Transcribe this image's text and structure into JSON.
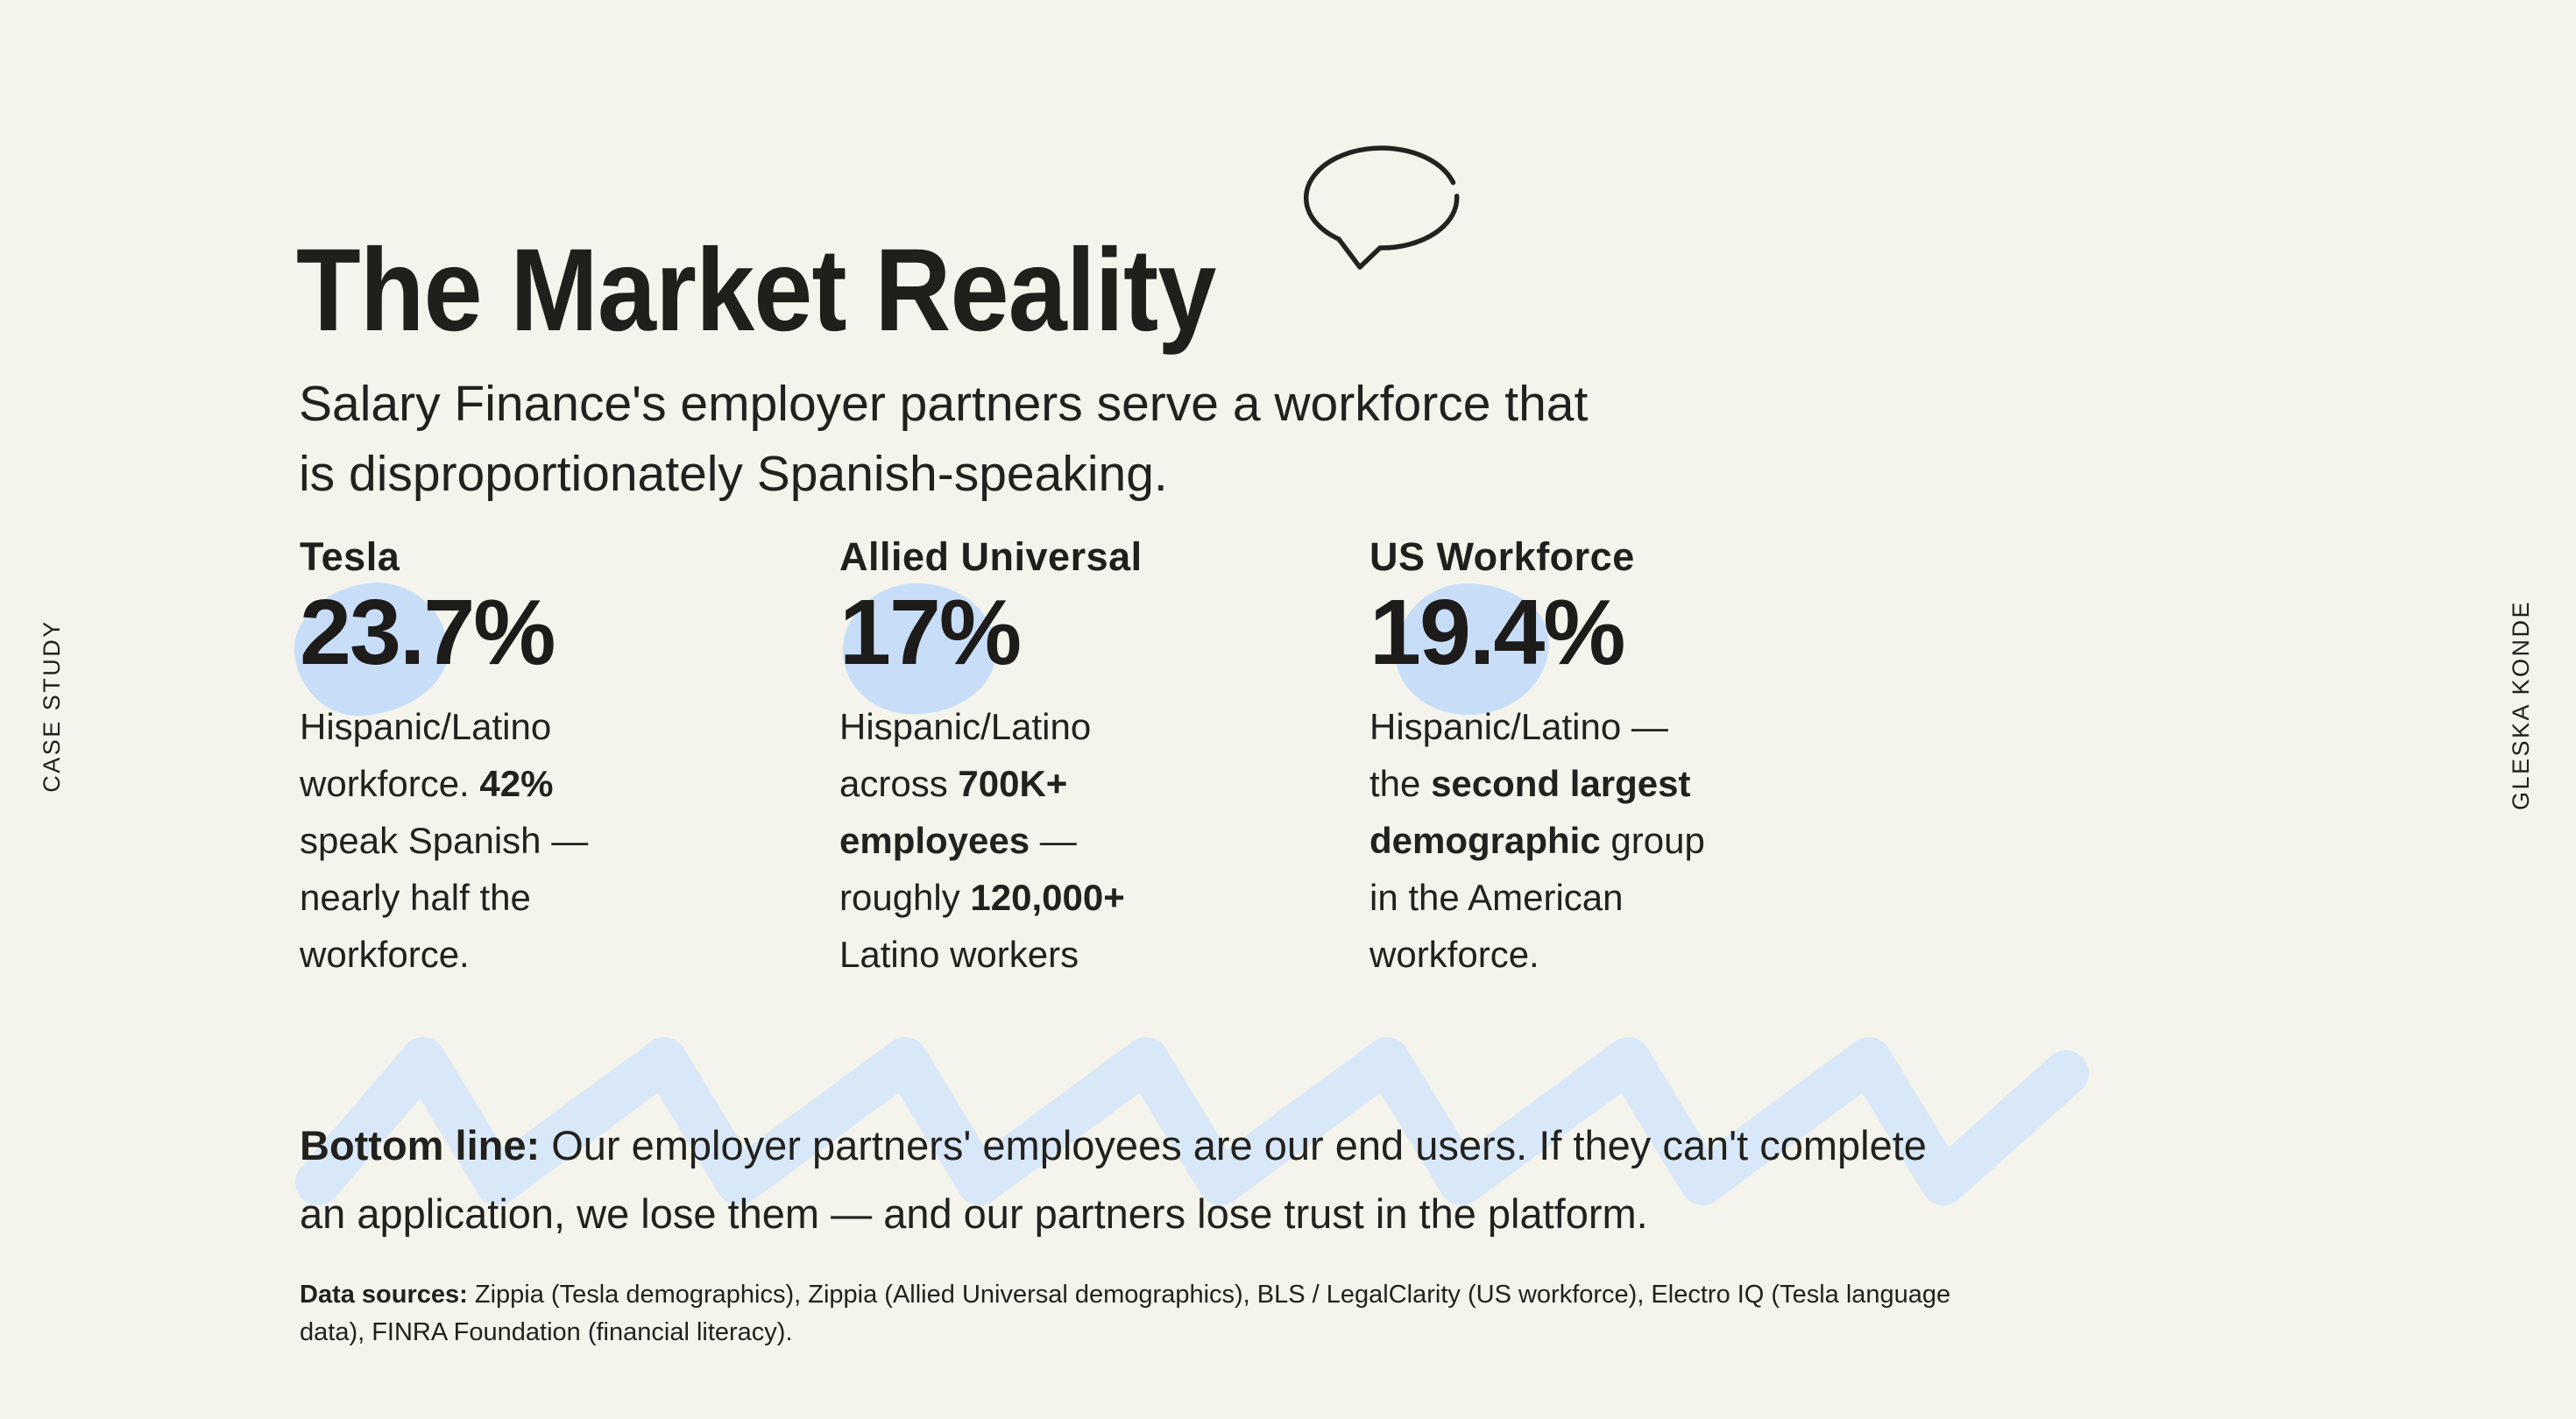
{
  "page": {
    "background": "#f4f4ec",
    "text_color": "#201f1c",
    "accent_blob_color": "#c8def8",
    "squiggle_color": "#d9e8f8"
  },
  "side_labels": {
    "left": "CASE STUDY",
    "right": "GLESKA KONDE"
  },
  "header": {
    "title": "The Market Reality",
    "subtitle": "Salary Finance's employer partners serve a workforce that\nis disproportionately Spanish-speaking."
  },
  "stats": [
    {
      "label": "Tesla",
      "value": "23.7%",
      "description": [
        {
          "t": "Hispanic/Latino\nworkforce. ",
          "b": false
        },
        {
          "t": "42%",
          "b": true
        },
        {
          "t": " \nspeak Spanish —\nnearly half the\nworkforce.",
          "b": false
        }
      ]
    },
    {
      "label": "Allied Universal",
      "value": "17%",
      "description": [
        {
          "t": "Hispanic/Latino\nacross ",
          "b": false
        },
        {
          "t": "700K+",
          "b": true
        },
        {
          "t": "\n",
          "b": false
        },
        {
          "t": "employees",
          "b": true
        },
        {
          "t": " —\nroughly ",
          "b": false
        },
        {
          "t": "120,000+",
          "b": true
        },
        {
          "t": "\nLatino workers",
          "b": false
        }
      ]
    },
    {
      "label": "US Workforce",
      "value": "19.4%",
      "description": [
        {
          "t": "Hispanic/Latino —\nthe ",
          "b": false
        },
        {
          "t": "second largest",
          "b": true
        },
        {
          "t": "\n",
          "b": false
        },
        {
          "t": "demographic",
          "b": true
        },
        {
          "t": " group\nin the American\nworkforce.",
          "b": false
        }
      ]
    }
  ],
  "bottom_line": [
    {
      "t": "Bottom line:",
      "b": true
    },
    {
      "t": " Our employer partners' employees are our end users. If they can't complete\nan application, we lose them — and our partners lose trust in the platform.",
      "b": false
    }
  ],
  "sources": [
    {
      "t": "Data sources:",
      "b": true
    },
    {
      "t": " Zippia (Tesla demographics), Zippia (Allied Universal demographics), BLS / LegalClarity (US workforce), Electro IQ (Tesla language\ndata), FINRA Foundation (financial literacy).",
      "b": false
    }
  ]
}
